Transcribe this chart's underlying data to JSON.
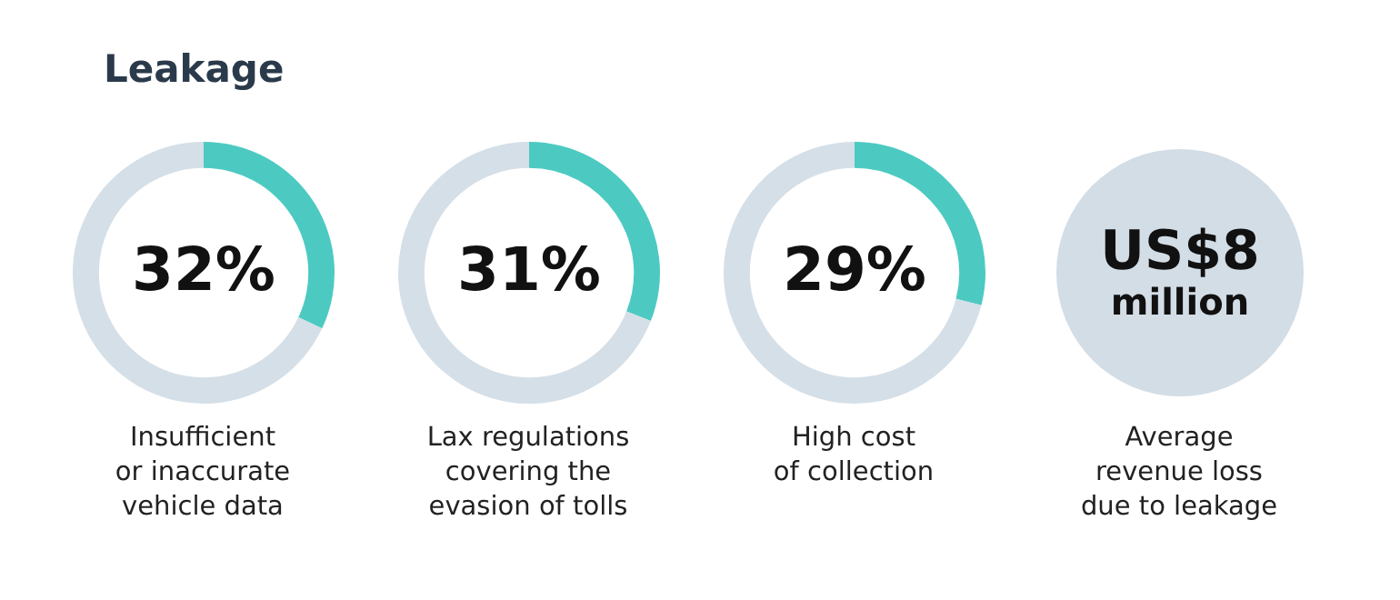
{
  "chart_data": [
    {
      "type": "donut",
      "title": "Leakage",
      "categories": [
        null,
        null
      ],
      "values": [
        32,
        68
      ],
      "colors": [
        "#4ccac2",
        "#d5dfe7"
      ],
      "value_labels": [
        "32%",
        null
      ],
      "annotations": [
        "Insufficient\nor inaccurate\nvehicle data"
      ]
    },
    {
      "type": "donut",
      "categories": [
        null,
        null
      ],
      "values": [
        31,
        69
      ],
      "colors": [
        "#4ccac2",
        "#d5dfe7"
      ],
      "value_labels": [
        "31%",
        null
      ],
      "annotations": [
        "Lax regulations\ncovering the\nevasion of tolls"
      ]
    },
    {
      "type": "donut",
      "categories": [
        null,
        null
      ],
      "values": [
        29,
        71
      ],
      "colors": [
        "#4ccac2",
        "#d5dfe7"
      ],
      "value_labels": [
        "29%",
        null
      ],
      "annotations": [
        "High cost\nof collection"
      ]
    },
    {
      "type": "other",
      "annotations": [
        "US$8\nmillion",
        "Average\nrevenue loss\ndue to leakage"
      ]
    }
  ]
}
